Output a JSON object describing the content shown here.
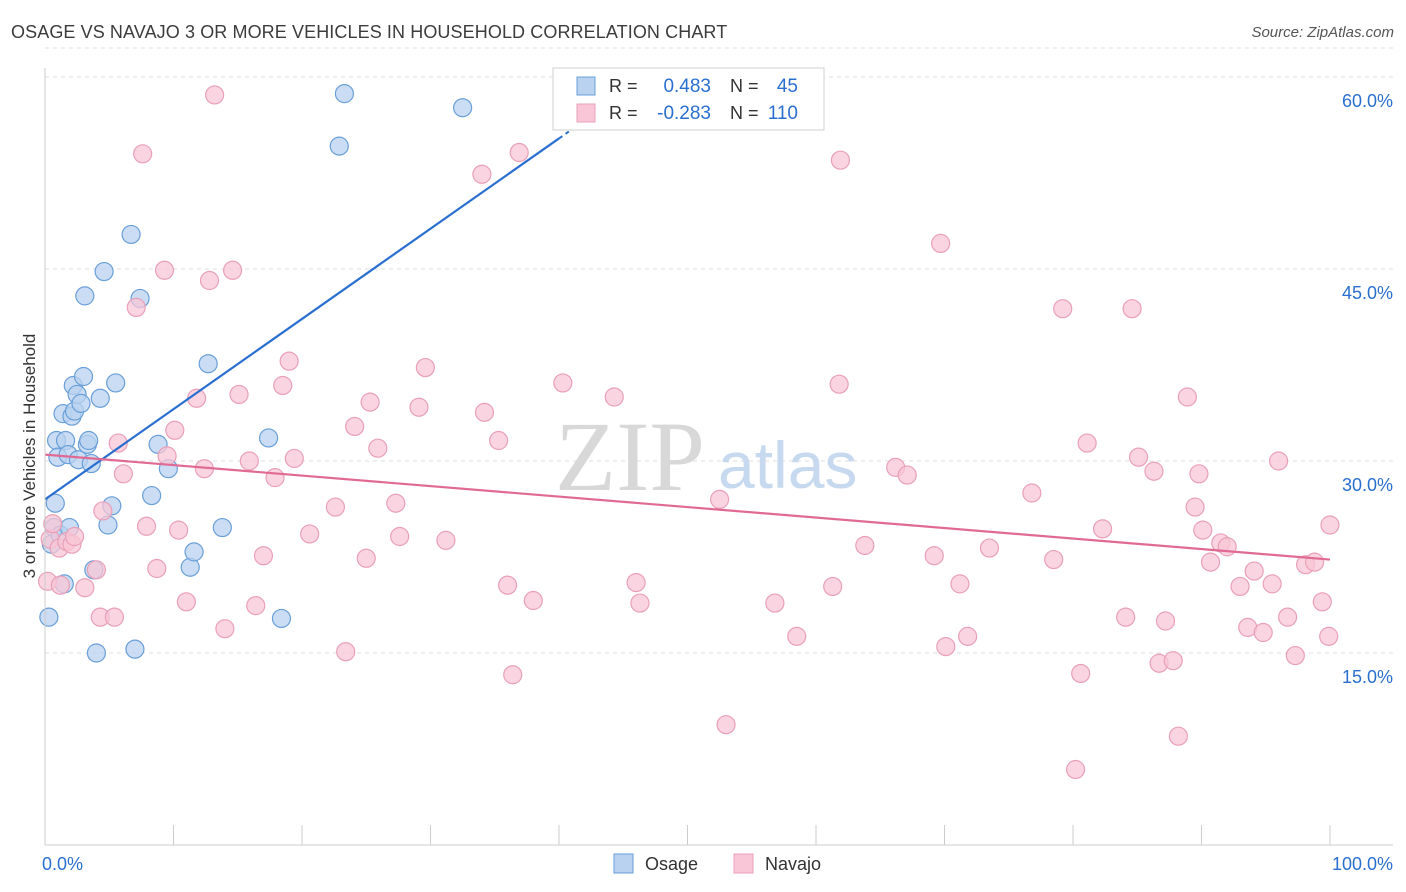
{
  "header": {
    "title": "OSAGE VS NAVAJO 3 OR MORE VEHICLES IN HOUSEHOLD CORRELATION CHART",
    "source": "Source: ZipAtlas.com"
  },
  "watermark": {
    "zip": "ZIP",
    "atlas": "atlas"
  },
  "legend_top": {
    "r_label": "R =",
    "n_label": "N =",
    "rows": [
      {
        "r_value": "0.483",
        "n_value": "45",
        "color": "#6a9fd8"
      },
      {
        "r_value": "-0.283",
        "n_value": "110",
        "color": "#e8a0b8"
      }
    ]
  },
  "legend_bottom": [
    {
      "label": "Osage",
      "color": "#6a9fd8"
    },
    {
      "label": "Navajo",
      "color": "#e8a0b8"
    }
  ],
  "colors": {
    "osage_fill": "#b8d2f0",
    "osage_stroke": "#6a9fd8",
    "osage_line": "#2a6fcf",
    "navajo_fill": "#f8c6d6",
    "navajo_stroke": "#e8a0b8",
    "navajo_line": "#e06a94",
    "value_text": "#2a6fcf",
    "grid": "#dddddd"
  },
  "chart_data": {
    "type": "scatter",
    "title": "OSAGE VS NAVAJO 3 OR MORE VEHICLES IN HOUSEHOLD CORRELATION CHART",
    "xlabel": "",
    "ylabel": "3 or more Vehicles in Household",
    "x_tick_labels": [
      "0.0%",
      "100.0%"
    ],
    "y_tick_labels": [
      "15.0%",
      "30.0%",
      "45.0%",
      "60.0%"
    ],
    "y_ticks": [
      15,
      30,
      45,
      60
    ],
    "xlim": [
      0,
      100
    ],
    "ylim": [
      0,
      62.5
    ],
    "grid": true,
    "series": [
      {
        "name": "Osage",
        "r": 0.483,
        "n": 45,
        "trend": {
          "x0": 0,
          "y0": 27.0,
          "x1": 40,
          "y1": 55.2,
          "dashed_to_x": 42,
          "dashed_to_y": 56.6
        },
        "points": [
          [
            0.3,
            17.8
          ],
          [
            0.5,
            23.5
          ],
          [
            0.7,
            24.8
          ],
          [
            0.8,
            26.7
          ],
          [
            0.9,
            31.6
          ],
          [
            1.0,
            30.3
          ],
          [
            1.2,
            24.2
          ],
          [
            1.4,
            33.7
          ],
          [
            1.5,
            20.4
          ],
          [
            1.6,
            31.6
          ],
          [
            1.8,
            30.5
          ],
          [
            1.9,
            24.8
          ],
          [
            2.1,
            33.5
          ],
          [
            2.2,
            35.9
          ],
          [
            2.3,
            33.9
          ],
          [
            2.5,
            35.2
          ],
          [
            2.6,
            30.1
          ],
          [
            2.8,
            34.5
          ],
          [
            3.0,
            36.6
          ],
          [
            3.1,
            42.9
          ],
          [
            3.3,
            31.3
          ],
          [
            3.4,
            31.6
          ],
          [
            3.6,
            29.8
          ],
          [
            3.8,
            21.5
          ],
          [
            4.0,
            15.0
          ],
          [
            4.3,
            34.9
          ],
          [
            4.6,
            44.8
          ],
          [
            4.9,
            25.0
          ],
          [
            5.2,
            26.5
          ],
          [
            5.5,
            36.1
          ],
          [
            6.7,
            47.7
          ],
          [
            7.0,
            15.3
          ],
          [
            7.4,
            42.7
          ],
          [
            8.3,
            27.3
          ],
          [
            8.8,
            31.3
          ],
          [
            9.6,
            29.4
          ],
          [
            11.3,
            21.7
          ],
          [
            11.6,
            22.9
          ],
          [
            12.7,
            37.6
          ],
          [
            13.8,
            24.8
          ],
          [
            17.4,
            31.8
          ],
          [
            18.4,
            17.7
          ],
          [
            22.9,
            54.6
          ],
          [
            23.3,
            58.7
          ],
          [
            32.5,
            57.6
          ]
        ]
      },
      {
        "name": "Navajo",
        "r": -0.283,
        "n": 110,
        "trend": {
          "x0": 0,
          "y0": 30.5,
          "x1": 100,
          "y1": 22.3
        },
        "points": [
          [
            0.2,
            20.6
          ],
          [
            0.4,
            23.9
          ],
          [
            0.6,
            25.1
          ],
          [
            1.1,
            23.2
          ],
          [
            1.2,
            20.3
          ],
          [
            1.7,
            23.7
          ],
          [
            2.1,
            23.5
          ],
          [
            2.3,
            24.1
          ],
          [
            3.1,
            20.1
          ],
          [
            4.0,
            21.5
          ],
          [
            4.3,
            17.8
          ],
          [
            4.5,
            26.1
          ],
          [
            5.4,
            17.8
          ],
          [
            5.7,
            31.4
          ],
          [
            6.1,
            29.0
          ],
          [
            7.1,
            42.0
          ],
          [
            7.6,
            54.0
          ],
          [
            7.9,
            24.9
          ],
          [
            8.7,
            21.6
          ],
          [
            9.3,
            44.9
          ],
          [
            9.5,
            30.4
          ],
          [
            10.1,
            32.4
          ],
          [
            10.4,
            24.6
          ],
          [
            11.0,
            19.0
          ],
          [
            11.8,
            34.9
          ],
          [
            12.4,
            29.4
          ],
          [
            12.8,
            44.1
          ],
          [
            13.2,
            58.6
          ],
          [
            14.0,
            16.9
          ],
          [
            14.6,
            44.9
          ],
          [
            15.1,
            35.2
          ],
          [
            15.9,
            30.0
          ],
          [
            16.4,
            18.7
          ],
          [
            17.0,
            22.6
          ],
          [
            17.9,
            28.7
          ],
          [
            18.5,
            35.9
          ],
          [
            19.0,
            37.8
          ],
          [
            19.4,
            30.2
          ],
          [
            20.6,
            24.3
          ],
          [
            22.6,
            26.4
          ],
          [
            23.4,
            15.1
          ],
          [
            24.1,
            32.7
          ],
          [
            25.0,
            22.4
          ],
          [
            25.3,
            34.6
          ],
          [
            25.9,
            31.0
          ],
          [
            27.3,
            26.7
          ],
          [
            27.6,
            24.1
          ],
          [
            29.1,
            34.2
          ],
          [
            29.6,
            37.3
          ],
          [
            31.2,
            23.8
          ],
          [
            34.0,
            52.4
          ],
          [
            34.2,
            33.8
          ],
          [
            35.3,
            31.6
          ],
          [
            36.0,
            20.3
          ],
          [
            36.4,
            13.3
          ],
          [
            36.9,
            54.1
          ],
          [
            38.0,
            19.1
          ],
          [
            40.3,
            36.1
          ],
          [
            44.3,
            35.0
          ],
          [
            46.0,
            20.5
          ],
          [
            46.3,
            18.9
          ],
          [
            52.5,
            27.0
          ],
          [
            53.0,
            9.4
          ],
          [
            56.8,
            18.9
          ],
          [
            58.5,
            16.3
          ],
          [
            61.3,
            20.2
          ],
          [
            61.8,
            36.0
          ],
          [
            61.9,
            53.5
          ],
          [
            63.8,
            23.4
          ],
          [
            66.2,
            29.5
          ],
          [
            67.1,
            28.9
          ],
          [
            69.2,
            22.6
          ],
          [
            69.7,
            47.0
          ],
          [
            70.1,
            15.5
          ],
          [
            71.2,
            20.4
          ],
          [
            71.8,
            16.3
          ],
          [
            73.5,
            23.2
          ],
          [
            76.8,
            27.5
          ],
          [
            78.5,
            22.3
          ],
          [
            79.2,
            41.9
          ],
          [
            80.2,
            5.9
          ],
          [
            80.6,
            13.4
          ],
          [
            81.1,
            31.4
          ],
          [
            82.3,
            24.7
          ],
          [
            84.1,
            17.8
          ],
          [
            84.6,
            41.9
          ],
          [
            85.1,
            30.3
          ],
          [
            86.3,
            29.2
          ],
          [
            86.7,
            14.2
          ],
          [
            87.2,
            17.5
          ],
          [
            87.8,
            14.4
          ],
          [
            88.2,
            8.5
          ],
          [
            88.9,
            35.0
          ],
          [
            89.5,
            26.4
          ],
          [
            89.8,
            29.0
          ],
          [
            90.1,
            24.6
          ],
          [
            90.7,
            22.1
          ],
          [
            91.5,
            23.6
          ],
          [
            92.0,
            23.3
          ],
          [
            93.0,
            20.2
          ],
          [
            93.6,
            17.0
          ],
          [
            94.1,
            21.4
          ],
          [
            94.8,
            16.6
          ],
          [
            95.5,
            20.4
          ],
          [
            96.0,
            30.0
          ],
          [
            96.7,
            17.8
          ],
          [
            97.3,
            14.8
          ],
          [
            98.1,
            21.9
          ],
          [
            98.8,
            22.1
          ],
          [
            99.4,
            19.0
          ],
          [
            99.9,
            16.3
          ],
          [
            100.0,
            25.0
          ]
        ]
      }
    ]
  }
}
